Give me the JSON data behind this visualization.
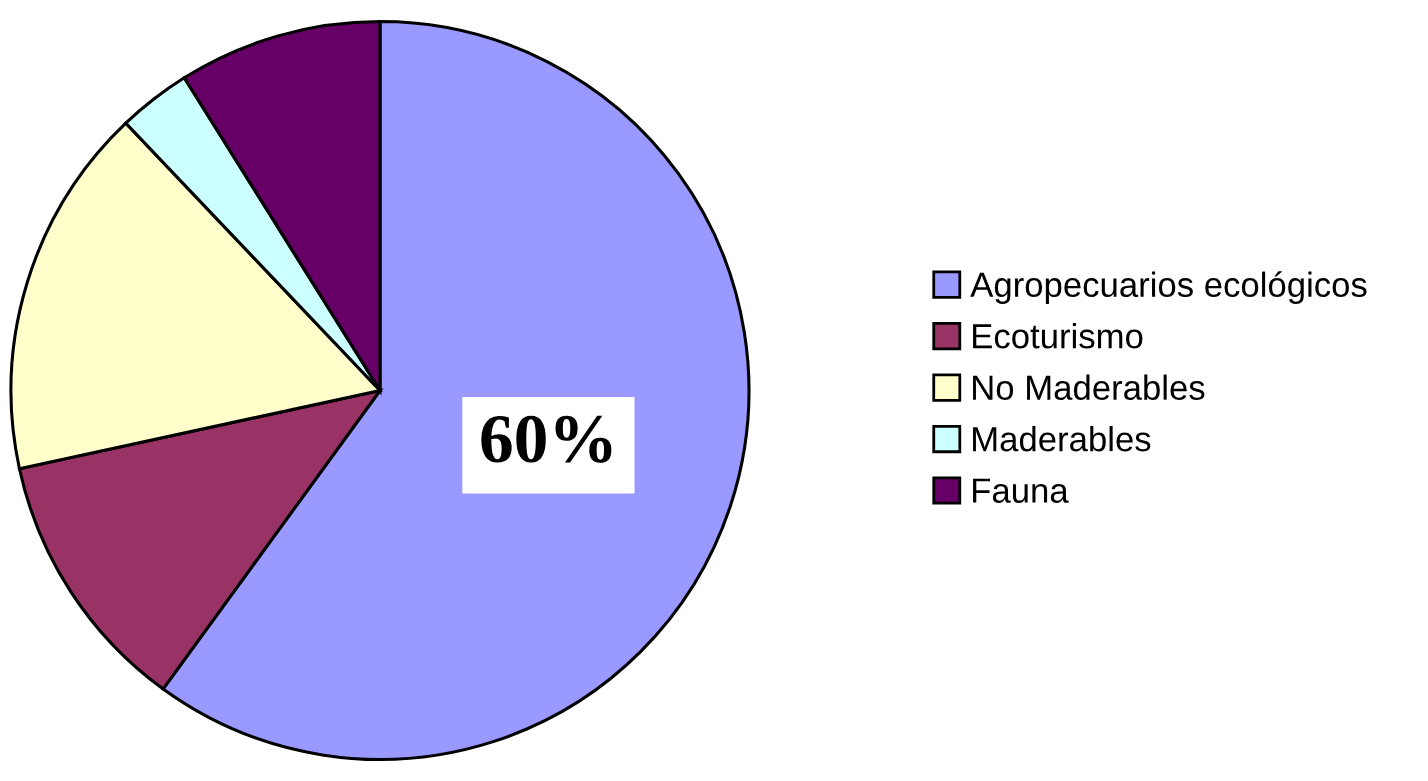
{
  "chart_data": {
    "type": "pie",
    "categories": [
      "Agropecuarios ecológicos",
      "Ecoturismo",
      "No Maderables",
      "Maderables",
      "Fauna"
    ],
    "values": [
      60,
      11.6,
      16.3,
      3.2,
      8.9
    ],
    "colors": [
      "#9999ff",
      "#993366",
      "#ffffcc",
      "#ccffff",
      "#660066"
    ],
    "value_labels": [
      "60%",
      null,
      null,
      null,
      null
    ],
    "legend": "right"
  }
}
